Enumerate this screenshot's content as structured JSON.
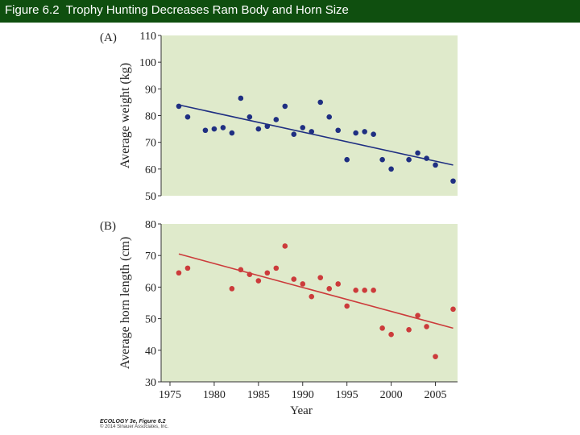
{
  "header": {
    "title": "Figure 6.2  Trophy Hunting Decreases Ram Body and Horn Size"
  },
  "colors": {
    "header_bg": "#0f4f0f",
    "plot_bg": "#dfeacb",
    "blue": "#1f2f82",
    "red": "#cc3b3b"
  },
  "chart_data": [
    {
      "type": "scatter",
      "panel_label": "(A)",
      "title": "",
      "xlabel": "",
      "ylabel": "Average weight (kg)",
      "xlim": [
        1974,
        2007.5
      ],
      "ylim": [
        50,
        110
      ],
      "yticks": [
        50,
        60,
        70,
        80,
        90,
        100,
        110
      ],
      "point_color": "#1f2f82",
      "points": [
        [
          1976,
          83.5
        ],
        [
          1977,
          79.5
        ],
        [
          1979,
          74.5
        ],
        [
          1980,
          75
        ],
        [
          1981,
          75.5
        ],
        [
          1982,
          73.5
        ],
        [
          1983,
          86.5
        ],
        [
          1984,
          79.5
        ],
        [
          1985,
          75
        ],
        [
          1986,
          76
        ],
        [
          1987,
          78.5
        ],
        [
          1988,
          83.5
        ],
        [
          1989,
          73
        ],
        [
          1990,
          75.5
        ],
        [
          1991,
          74
        ],
        [
          1992,
          85
        ],
        [
          1993,
          79.5
        ],
        [
          1994,
          74.5
        ],
        [
          1995,
          63.5
        ],
        [
          1996,
          73.5
        ],
        [
          1997,
          74
        ],
        [
          1998,
          73
        ],
        [
          1999,
          63.5
        ],
        [
          2000,
          60
        ],
        [
          2002,
          63.5
        ],
        [
          2003,
          66
        ],
        [
          2004,
          64
        ],
        [
          2005,
          61.5
        ],
        [
          2007,
          55.5
        ]
      ],
      "trend": [
        [
          1976,
          84
        ],
        [
          2007,
          61.5
        ]
      ]
    },
    {
      "type": "scatter",
      "panel_label": "(B)",
      "title": "",
      "xlabel": "Year",
      "ylabel": "Average horn length (cm)",
      "xlim": [
        1974,
        2007.5
      ],
      "ylim": [
        30,
        80
      ],
      "yticks": [
        30,
        40,
        50,
        60,
        70,
        80
      ],
      "xticks": [
        1975,
        1980,
        1985,
        1990,
        1995,
        2000,
        2005
      ],
      "point_color": "#cc3b3b",
      "points": [
        [
          1976,
          64.5
        ],
        [
          1977,
          66
        ],
        [
          1982,
          59.5
        ],
        [
          1983,
          65.5
        ],
        [
          1984,
          64
        ],
        [
          1985,
          62
        ],
        [
          1986,
          64.5
        ],
        [
          1987,
          66
        ],
        [
          1988,
          73
        ],
        [
          1989,
          62.5
        ],
        [
          1990,
          61
        ],
        [
          1991,
          57
        ],
        [
          1992,
          63
        ],
        [
          1993,
          59.5
        ],
        [
          1994,
          61
        ],
        [
          1995,
          54
        ],
        [
          1996,
          59
        ],
        [
          1997,
          59
        ],
        [
          1998,
          59
        ],
        [
          1999,
          47
        ],
        [
          2000,
          45
        ],
        [
          2002,
          46.5
        ],
        [
          2003,
          51
        ],
        [
          2004,
          47.5
        ],
        [
          2005,
          38
        ],
        [
          2007,
          53
        ]
      ],
      "trend": [
        [
          1976,
          70.5
        ],
        [
          2007,
          47
        ]
      ]
    }
  ],
  "credit": {
    "title": "ECOLOGY 3e, Figure 6.2",
    "copyright": "© 2014 Sinauer Associates, Inc."
  }
}
